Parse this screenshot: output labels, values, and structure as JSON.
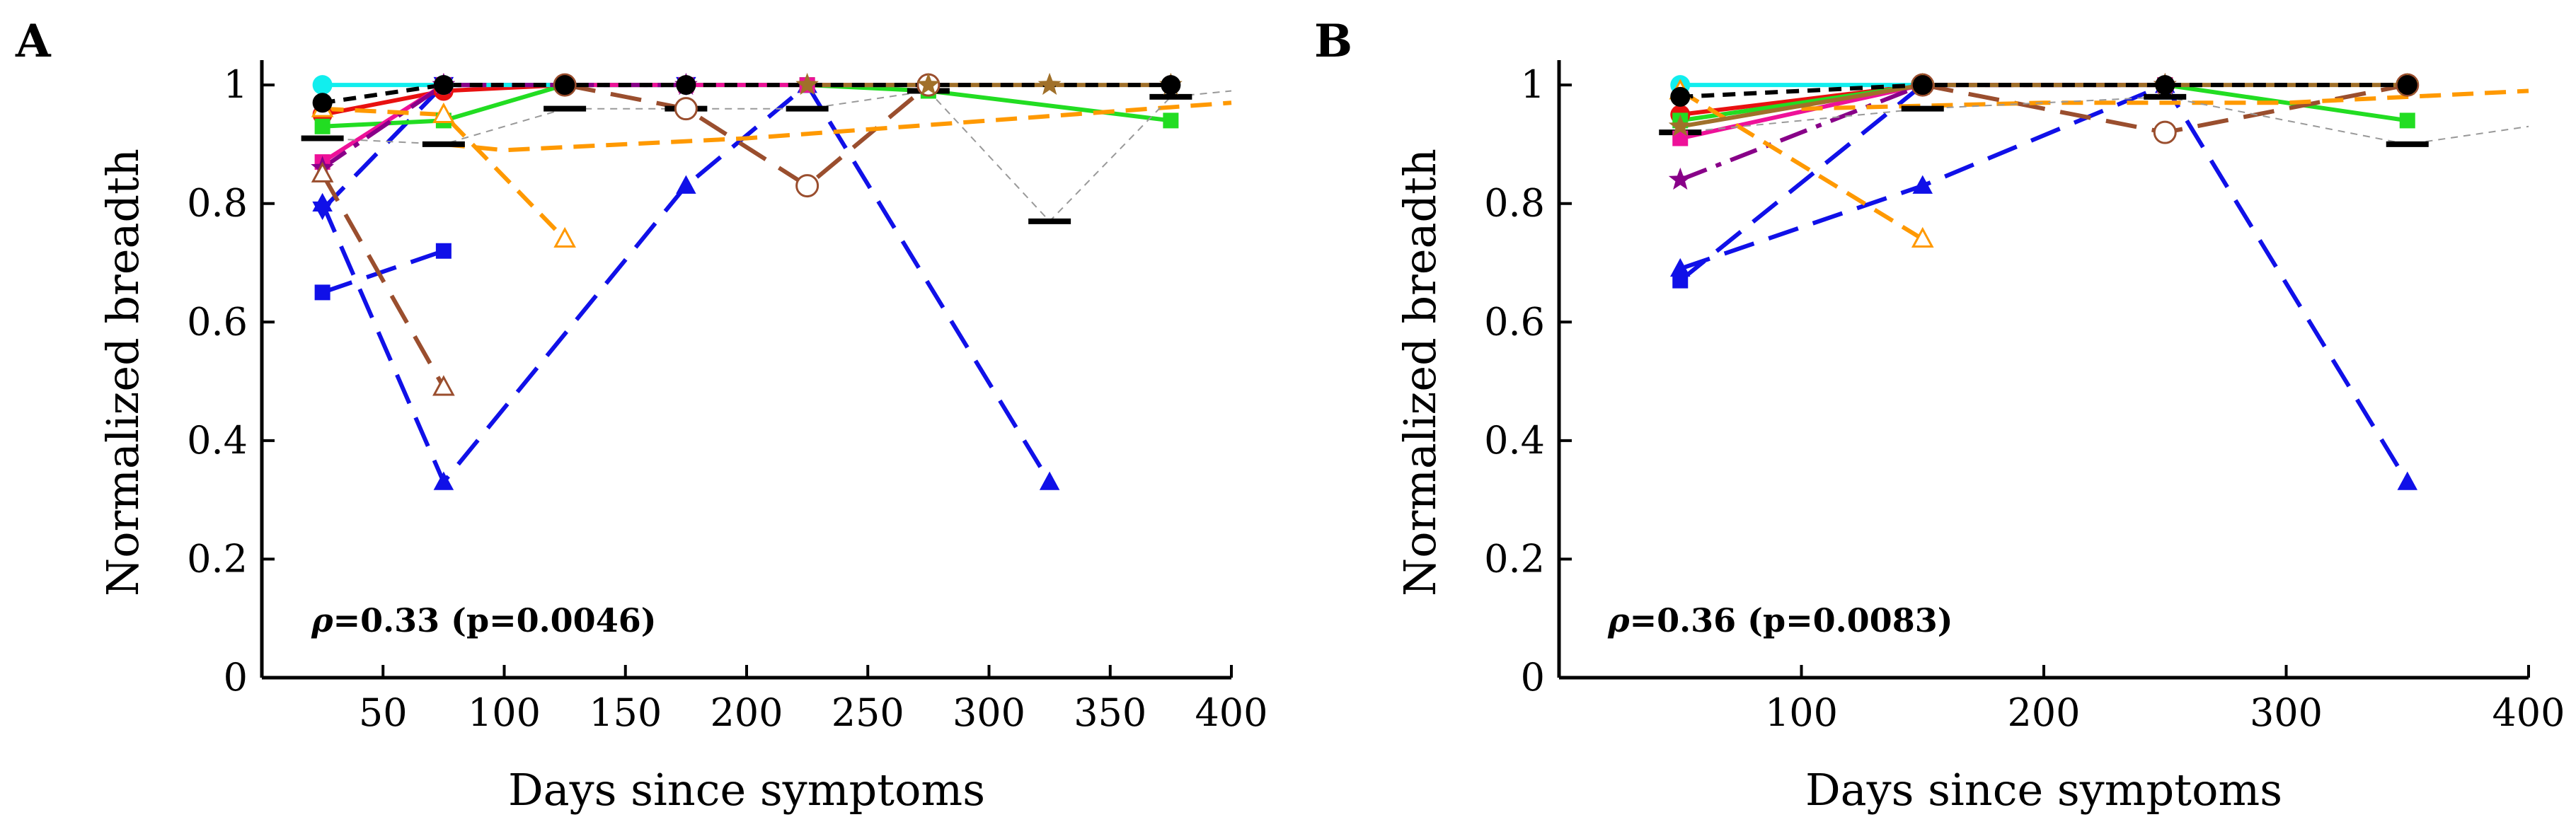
{
  "figure": {
    "panels": [
      {
        "id": "A",
        "label": "A"
      },
      {
        "id": "B",
        "label": "B"
      }
    ]
  },
  "colors": {
    "axis": "#000000",
    "blue": "#1010e8",
    "red": "#e81010",
    "green": "#22dd22",
    "magenta": "#ee1199",
    "cyan": "#11eeee",
    "purple": "#880088",
    "brown": "#9a4e2e",
    "orange": "#ff9900",
    "gold": "#a0702a",
    "black": "#000000",
    "gray": "#999999"
  },
  "chart_data": [
    {
      "panel": "A",
      "type": "line",
      "xlabel": "Days since symptoms",
      "ylabel": "Normalized breadth",
      "xlim": [
        0,
        400
      ],
      "ylim": [
        0,
        1.03
      ],
      "xticks": [
        50,
        100,
        150,
        200,
        250,
        300,
        350,
        400
      ],
      "yticks": [
        0,
        0.2,
        0.4,
        0.6,
        0.8,
        1
      ],
      "ytick_labels": [
        "0",
        "0.2",
        "0.4",
        "0.6",
        "0.8",
        "1"
      ],
      "annotation": {
        "rho": "ρ",
        "text": "=0.33 (p=0.0046)"
      },
      "series": [
        {
          "name": "blue-triangle",
          "color": "blue",
          "dash": "long",
          "marker": "triangle",
          "x": [
            25,
            75,
            175,
            225,
            325
          ],
          "y": [
            0.8,
            0.33,
            0.83,
            1.0,
            0.33
          ]
        },
        {
          "name": "blue-square",
          "color": "blue",
          "dash": "long",
          "marker": "square",
          "x": [
            25,
            75
          ],
          "y": [
            0.65,
            0.72
          ]
        },
        {
          "name": "blue-downtriangle",
          "color": "blue",
          "dash": "long",
          "marker": "triangle-down",
          "x": [
            25,
            75,
            175
          ],
          "y": [
            0.79,
            1.0,
            1.0
          ]
        },
        {
          "name": "red-circle",
          "color": "red",
          "dash": "solid",
          "marker": "circle",
          "x": [
            25,
            75,
            125
          ],
          "y": [
            0.95,
            0.99,
            1.0
          ]
        },
        {
          "name": "green-square",
          "color": "green",
          "dash": "solid",
          "marker": "square",
          "x": [
            25,
            75,
            125,
            225,
            275,
            375
          ],
          "y": [
            0.93,
            0.94,
            1.0,
            1.0,
            0.99,
            0.94
          ]
        },
        {
          "name": "magenta-square",
          "color": "magenta",
          "dash": "solid",
          "marker": "square",
          "x": [
            25,
            75,
            125,
            175,
            225,
            275
          ],
          "y": [
            0.87,
            1.0,
            1.0,
            1.0,
            1.0,
            1.0
          ]
        },
        {
          "name": "cyan-circle",
          "color": "cyan",
          "dash": "solid",
          "marker": "circle",
          "x": [
            25,
            75,
            125
          ],
          "y": [
            1.0,
            1.0,
            1.0
          ]
        },
        {
          "name": "purple-star",
          "color": "purple",
          "dash": "dashdot",
          "marker": "star",
          "x": [
            25,
            75,
            175
          ],
          "y": [
            0.86,
            1.0,
            1.0
          ]
        },
        {
          "name": "brown-triangle",
          "color": "brown",
          "dash": "long",
          "marker": "triangle-open",
          "x": [
            25,
            75
          ],
          "y": [
            0.85,
            0.49
          ]
        },
        {
          "name": "brown-circle",
          "color": "brown",
          "dash": "long",
          "marker": "circle-open",
          "x": [
            125,
            175,
            225,
            275
          ],
          "y": [
            1.0,
            0.96,
            0.83,
            1.0
          ]
        },
        {
          "name": "orange-dash",
          "color": "orange",
          "dash": "medium",
          "marker": "none",
          "x": [
            75,
            100,
            200,
            300,
            400
          ],
          "y": [
            0.9,
            0.89,
            0.91,
            0.94,
            0.97
          ]
        },
        {
          "name": "orange-triangle",
          "color": "orange",
          "dash": "medium",
          "marker": "triangle-open",
          "x": [
            25,
            75,
            125
          ],
          "y": [
            0.96,
            0.95,
            0.74
          ]
        },
        {
          "name": "gold-star",
          "color": "gold",
          "dash": "solid",
          "marker": "star",
          "x": [
            225,
            275,
            325,
            375
          ],
          "y": [
            1.0,
            1.0,
            1.0,
            1.0
          ]
        },
        {
          "name": "black-circle",
          "color": "black",
          "dash": "dash",
          "marker": "circle",
          "x": [
            25,
            75,
            125,
            175,
            375
          ],
          "y": [
            0.97,
            1.0,
            1.0,
            1.0,
            1.0
          ]
        },
        {
          "name": "gray-thin",
          "color": "gray",
          "dash": "thin",
          "marker": "none",
          "x": [
            25,
            75,
            125,
            175,
            225,
            275,
            325,
            375,
            400
          ],
          "y": [
            0.91,
            0.9,
            0.96,
            0.96,
            0.96,
            0.99,
            0.77,
            0.98,
            0.99
          ]
        }
      ],
      "median_bars": {
        "x": [
          25,
          75,
          125,
          175,
          225,
          275,
          325,
          375
        ],
        "y": [
          0.91,
          0.9,
          0.96,
          0.96,
          0.96,
          0.99,
          0.77,
          0.98
        ]
      }
    },
    {
      "panel": "B",
      "type": "line",
      "xlabel": "Days since symptoms",
      "ylabel": "Normalized breadth",
      "xlim": [
        0,
        400
      ],
      "ylim": [
        0,
        1.03
      ],
      "xticks": [
        100,
        200,
        300,
        400
      ],
      "yticks": [
        0,
        0.2,
        0.4,
        0.6,
        0.8,
        1
      ],
      "ytick_labels": [
        "0",
        "0.2",
        "0.4",
        "0.6",
        "0.8",
        "1"
      ],
      "annotation": {
        "rho": "ρ",
        "text": "=0.36 (p=0.0083)"
      },
      "series": [
        {
          "name": "blue-triangle",
          "color": "blue",
          "dash": "long",
          "marker": "triangle",
          "x": [
            50,
            150,
            250,
            350
          ],
          "y": [
            0.69,
            0.83,
            1.0,
            0.33
          ]
        },
        {
          "name": "blue-square",
          "color": "blue",
          "dash": "long",
          "marker": "square",
          "x": [
            50,
            150
          ],
          "y": [
            0.67,
            1.0
          ]
        },
        {
          "name": "red-circle",
          "color": "red",
          "dash": "solid",
          "marker": "circle",
          "x": [
            50,
            150
          ],
          "y": [
            0.95,
            1.0
          ]
        },
        {
          "name": "green-square",
          "color": "green",
          "dash": "solid",
          "marker": "square",
          "x": [
            50,
            150,
            250,
            350
          ],
          "y": [
            0.94,
            1.0,
            1.0,
            0.94
          ]
        },
        {
          "name": "magenta-square",
          "color": "magenta",
          "dash": "solid",
          "marker": "square",
          "x": [
            50,
            150,
            250
          ],
          "y": [
            0.91,
            1.0,
            1.0
          ]
        },
        {
          "name": "cyan-circle",
          "color": "cyan",
          "dash": "solid",
          "marker": "circle",
          "x": [
            50,
            150
          ],
          "y": [
            1.0,
            1.0
          ]
        },
        {
          "name": "purple-star",
          "color": "purple",
          "dash": "dashdot",
          "marker": "star",
          "x": [
            50,
            150,
            250
          ],
          "y": [
            0.84,
            1.0,
            1.0
          ]
        },
        {
          "name": "brown-circle",
          "color": "brown",
          "dash": "long",
          "marker": "circle-open",
          "x": [
            150,
            250,
            350
          ],
          "y": [
            1.0,
            0.92,
            1.0
          ]
        },
        {
          "name": "orange-dash",
          "color": "orange",
          "dash": "medium",
          "marker": "none",
          "x": [
            100,
            200,
            300,
            400
          ],
          "y": [
            0.96,
            0.97,
            0.97,
            0.99
          ]
        },
        {
          "name": "orange-triangle",
          "color": "orange",
          "dash": "medium",
          "marker": "triangle-open",
          "x": [
            50,
            150
          ],
          "y": [
            0.99,
            0.74
          ]
        },
        {
          "name": "gold-star",
          "color": "gold",
          "dash": "solid",
          "marker": "star",
          "x": [
            50,
            150,
            250,
            350
          ],
          "y": [
            0.93,
            1.0,
            1.0,
            1.0
          ]
        },
        {
          "name": "black-circle",
          "color": "black",
          "dash": "dash",
          "marker": "circle",
          "x": [
            50,
            150,
            250,
            350
          ],
          "y": [
            0.98,
            1.0,
            1.0,
            1.0
          ]
        },
        {
          "name": "gray-thin",
          "color": "gray",
          "dash": "thin",
          "marker": "none",
          "x": [
            50,
            150,
            250,
            350,
            400
          ],
          "y": [
            0.92,
            0.96,
            0.98,
            0.9,
            0.93
          ]
        }
      ],
      "median_bars": {
        "x": [
          50,
          150,
          250,
          350
        ],
        "y": [
          0.92,
          0.96,
          0.98,
          0.9
        ]
      }
    }
  ]
}
